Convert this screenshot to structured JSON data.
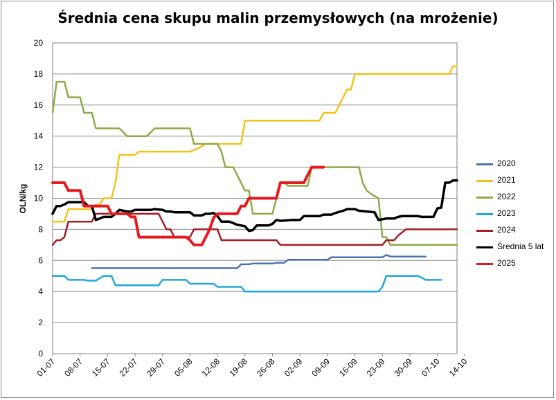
{
  "chart_data": {
    "type": "line",
    "title": "Średnia cena skupu malin przemysłowych (na mrożenie)",
    "xlabel": "",
    "ylabel": "OLN/kg",
    "ylim": [
      0,
      20
    ],
    "yticks": [
      "0",
      "2",
      "4",
      "6",
      "8",
      "10",
      "12",
      "14",
      "16",
      "18",
      "20"
    ],
    "x_range": [
      0,
      103
    ],
    "categories": [
      {
        "label": "01-07",
        "x": 0
      },
      {
        "label": "08-07",
        "x": 7
      },
      {
        "label": "15-07",
        "x": 14
      },
      {
        "label": "22-07",
        "x": 21
      },
      {
        "label": "29-07",
        "x": 28
      },
      {
        "label": "05-08",
        "x": 35
      },
      {
        "label": "12-08",
        "x": 42
      },
      {
        "label": "19-08",
        "x": 49
      },
      {
        "label": "26-08",
        "x": 56
      },
      {
        "label": "02-09",
        "x": 63
      },
      {
        "label": "09-09",
        "x": 70
      },
      {
        "label": "16-09",
        "x": 77
      },
      {
        "label": "23-09",
        "x": 84
      },
      {
        "label": "30-09",
        "x": 91
      },
      {
        "label": "07-10",
        "x": 98
      },
      {
        "label": "14-10",
        "x": 105
      }
    ],
    "grid": "horizontal",
    "legend_position": "right",
    "series": [
      {
        "name": "2020",
        "color": "#4a72b0",
        "width": 2.5,
        "points": [
          [
            10,
            5.5
          ],
          [
            47,
            5.5
          ],
          [
            48,
            5.75
          ],
          [
            50,
            5.75
          ],
          [
            51,
            5.8
          ],
          [
            56,
            5.8
          ],
          [
            57,
            5.85
          ],
          [
            59,
            5.85
          ],
          [
            60,
            6.05
          ],
          [
            70,
            6.05
          ],
          [
            71,
            6.2
          ],
          [
            84,
            6.2
          ],
          [
            85,
            6.35
          ],
          [
            86,
            6.25
          ],
          [
            95,
            6.25
          ]
        ]
      },
      {
        "name": "2021",
        "color": "#f2c21b",
        "width": 2.5,
        "points": [
          [
            0,
            8.5
          ],
          [
            3,
            8.5
          ],
          [
            4,
            9.3
          ],
          [
            10,
            9.3
          ],
          [
            11,
            9.6
          ],
          [
            12,
            9.6
          ],
          [
            13,
            10
          ],
          [
            15,
            10
          ],
          [
            16,
            11
          ],
          [
            17,
            12.8
          ],
          [
            21,
            12.8
          ],
          [
            22,
            13
          ],
          [
            34,
            13
          ],
          [
            35,
            13
          ],
          [
            37,
            13.2
          ],
          [
            39,
            13.5
          ],
          [
            48,
            13.5
          ],
          [
            49,
            15
          ],
          [
            68,
            15
          ],
          [
            69,
            15.5
          ],
          [
            72,
            15.5
          ],
          [
            73,
            16
          ],
          [
            74,
            16.5
          ],
          [
            75,
            17
          ],
          [
            76,
            17
          ],
          [
            77,
            18
          ],
          [
            101,
            18
          ],
          [
            102,
            18.5
          ],
          [
            103,
            18.5
          ]
        ]
      },
      {
        "name": "2022",
        "color": "#8caa46",
        "width": 2.5,
        "points": [
          [
            0,
            15.5
          ],
          [
            1,
            17.5
          ],
          [
            3,
            17.5
          ],
          [
            4,
            16.5
          ],
          [
            7,
            16.5
          ],
          [
            8,
            15.5
          ],
          [
            10,
            15.5
          ],
          [
            11,
            14.5
          ],
          [
            17,
            14.5
          ],
          [
            19,
            14
          ],
          [
            24,
            14
          ],
          [
            26,
            14.5
          ],
          [
            35,
            14.5
          ],
          [
            36,
            13.5
          ],
          [
            40,
            13.5
          ],
          [
            42,
            13.5
          ],
          [
            43,
            13
          ],
          [
            44,
            12
          ],
          [
            46,
            12
          ],
          [
            48,
            11
          ],
          [
            49,
            10.5
          ],
          [
            50,
            10.5
          ],
          [
            51,
            9
          ],
          [
            56,
            9
          ],
          [
            57,
            10
          ],
          [
            58,
            11
          ],
          [
            59,
            11
          ],
          [
            60,
            10.8
          ],
          [
            65,
            10.8
          ],
          [
            66,
            12
          ],
          [
            78,
            12
          ],
          [
            79,
            11
          ],
          [
            80,
            10.5
          ],
          [
            81,
            10.3
          ],
          [
            83,
            10
          ],
          [
            84,
            7.5
          ],
          [
            85,
            7.5
          ],
          [
            86,
            7
          ],
          [
            103,
            7
          ]
        ]
      },
      {
        "name": "2023",
        "color": "#20a8dc",
        "width": 2.5,
        "points": [
          [
            0,
            5
          ],
          [
            3,
            5
          ],
          [
            4,
            4.75
          ],
          [
            8,
            4.75
          ],
          [
            9,
            4.7
          ],
          [
            11,
            4.7
          ],
          [
            12,
            4.85
          ],
          [
            13,
            5
          ],
          [
            15,
            5
          ],
          [
            16,
            4.4
          ],
          [
            27,
            4.4
          ],
          [
            28,
            4.75
          ],
          [
            34,
            4.75
          ],
          [
            35,
            4.5
          ],
          [
            41,
            4.5
          ],
          [
            42,
            4.3
          ],
          [
            48,
            4.3
          ],
          [
            49,
            4
          ],
          [
            83,
            4
          ],
          [
            84,
            4.3
          ],
          [
            85,
            5
          ],
          [
            92,
            5
          ],
          [
            93,
            5
          ],
          [
            94,
            4.9
          ],
          [
            95,
            4.75
          ],
          [
            99,
            4.75
          ]
        ]
      },
      {
        "name": "2024",
        "color": "#a31c23",
        "width": 2.5,
        "points": [
          [
            0,
            7
          ],
          [
            1,
            7.3
          ],
          [
            2,
            7.3
          ],
          [
            3,
            7.5
          ],
          [
            4,
            8.5
          ],
          [
            10,
            8.5
          ],
          [
            11,
            9
          ],
          [
            27,
            9
          ],
          [
            28,
            8.5
          ],
          [
            29,
            8
          ],
          [
            30,
            8
          ],
          [
            31,
            7.5
          ],
          [
            35,
            7.5
          ],
          [
            36,
            8
          ],
          [
            42,
            8
          ],
          [
            43,
            7.3
          ],
          [
            57,
            7.3
          ],
          [
            58,
            7
          ],
          [
            84,
            7
          ],
          [
            85,
            7.3
          ],
          [
            87,
            7.3
          ],
          [
            88,
            7.6
          ],
          [
            90,
            8
          ],
          [
            103,
            8
          ]
        ]
      },
      {
        "name": "Średnia 5 lat",
        "color": "#000000",
        "width": 3.5,
        "points": [
          [
            0,
            9
          ],
          [
            1,
            9.5
          ],
          [
            2,
            9.5
          ],
          [
            3,
            9.6
          ],
          [
            4,
            9.75
          ],
          [
            8,
            9.75
          ],
          [
            9,
            9.5
          ],
          [
            10,
            9.5
          ],
          [
            11,
            8.6
          ],
          [
            12,
            8.7
          ],
          [
            13,
            8.8
          ],
          [
            15,
            8.8
          ],
          [
            16,
            9
          ],
          [
            17,
            9.25
          ],
          [
            19,
            9.15
          ],
          [
            20,
            9.15
          ],
          [
            21,
            9.25
          ],
          [
            25,
            9.25
          ],
          [
            26,
            9.3
          ],
          [
            28,
            9.25
          ],
          [
            29,
            9.15
          ],
          [
            30,
            9.15
          ],
          [
            31,
            9.1
          ],
          [
            35,
            9.1
          ],
          [
            36,
            8.9
          ],
          [
            38,
            8.9
          ],
          [
            39,
            9
          ],
          [
            40,
            9
          ],
          [
            41,
            9.05
          ],
          [
            42,
            8.85
          ],
          [
            43,
            8.5
          ],
          [
            45,
            8.5
          ],
          [
            46,
            8.4
          ],
          [
            47,
            8.3
          ],
          [
            48,
            8.25
          ],
          [
            49,
            8.2
          ],
          [
            50,
            7.9
          ],
          [
            51,
            7.95
          ],
          [
            52,
            8.25
          ],
          [
            55,
            8.25
          ],
          [
            56,
            8.35
          ],
          [
            57,
            8.6
          ],
          [
            58,
            8.55
          ],
          [
            61,
            8.6
          ],
          [
            63,
            8.6
          ],
          [
            64,
            8.85
          ],
          [
            68,
            8.85
          ],
          [
            69,
            8.95
          ],
          [
            71,
            8.95
          ],
          [
            72,
            9.05
          ],
          [
            74,
            9.2
          ],
          [
            75,
            9.3
          ],
          [
            77,
            9.3
          ],
          [
            78,
            9.2
          ],
          [
            80,
            9.15
          ],
          [
            82,
            9.1
          ],
          [
            83,
            8.6
          ],
          [
            84,
            8.65
          ],
          [
            85,
            8.7
          ],
          [
            87,
            8.7
          ],
          [
            88,
            8.8
          ],
          [
            89,
            8.85
          ],
          [
            93,
            8.85
          ],
          [
            94,
            8.8
          ],
          [
            97,
            8.8
          ],
          [
            98,
            9.35
          ],
          [
            99,
            9.4
          ],
          [
            100,
            11
          ],
          [
            101,
            11
          ],
          [
            102,
            11.15
          ],
          [
            103,
            11.15
          ]
        ]
      },
      {
        "name": "2025",
        "color": "#e8191e",
        "width": 4,
        "points": [
          [
            0,
            11
          ],
          [
            3,
            11
          ],
          [
            4,
            10.5
          ],
          [
            7,
            10.5
          ],
          [
            8,
            9.5
          ],
          [
            14,
            9.5
          ],
          [
            15,
            9
          ],
          [
            19,
            9
          ],
          [
            20,
            8.8
          ],
          [
            21,
            8.8
          ],
          [
            22,
            7.5
          ],
          [
            34,
            7.5
          ],
          [
            35,
            7.3
          ],
          [
            36,
            7
          ],
          [
            38,
            7
          ],
          [
            39,
            7.5
          ],
          [
            40,
            8
          ],
          [
            41,
            8.75
          ],
          [
            42,
            9
          ],
          [
            47,
            9
          ],
          [
            48,
            9.5
          ],
          [
            49,
            9.5
          ],
          [
            50,
            10
          ],
          [
            57,
            10
          ],
          [
            58,
            11
          ],
          [
            64,
            11
          ],
          [
            65,
            11.5
          ],
          [
            66,
            12
          ],
          [
            69,
            12
          ]
        ]
      }
    ]
  }
}
